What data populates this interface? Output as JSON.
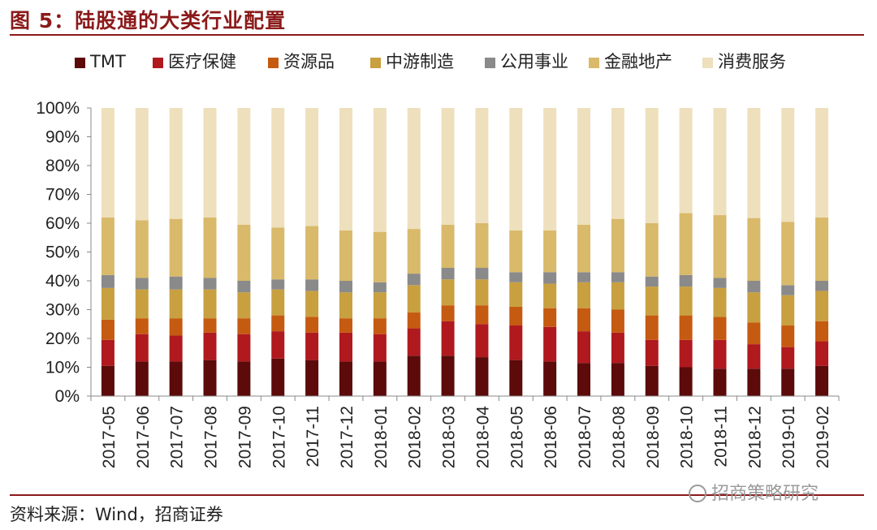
{
  "header": {
    "title": "图 5：陆股通的大类行业配置"
  },
  "footer": {
    "source": "资料来源：Wind，招商证券",
    "watermark": "招商策略研究"
  },
  "chart_data": {
    "type": "bar",
    "stacked": true,
    "title": "",
    "xlabel": "",
    "ylabel": "",
    "ylim": [
      0,
      100
    ],
    "yticks": [
      "0%",
      "10%",
      "20%",
      "30%",
      "40%",
      "50%",
      "60%",
      "70%",
      "80%",
      "90%",
      "100%"
    ],
    "legend_position": "top",
    "categories": [
      "2017-05",
      "2017-06",
      "2017-07",
      "2017-08",
      "2017-09",
      "2017-10",
      "2017-11",
      "2017-12",
      "2018-01",
      "2018-02",
      "2018-03",
      "2018-04",
      "2018-05",
      "2018-06",
      "2018-07",
      "2018-08",
      "2018-09",
      "2018-10",
      "2018-11",
      "2018-12",
      "2019-01",
      "2019-02"
    ],
    "series": [
      {
        "name": "TMT",
        "color": "#5c0a0a",
        "values": [
          10.5,
          12.0,
          12.0,
          12.5,
          12.0,
          13.0,
          12.5,
          12.0,
          12.0,
          14.0,
          14.0,
          13.5,
          12.5,
          12.0,
          11.5,
          11.5,
          10.5,
          10.0,
          9.5,
          9.5,
          9.5,
          10.5
        ]
      },
      {
        "name": "医疗保健",
        "color": "#b0191e",
        "values": [
          9.0,
          9.5,
          9.0,
          9.5,
          9.5,
          9.5,
          9.5,
          10.0,
          9.5,
          9.5,
          12.0,
          11.5,
          12.0,
          12.0,
          11.0,
          10.5,
          9.0,
          9.5,
          10.0,
          8.5,
          7.5,
          8.5
        ]
      },
      {
        "name": "资源品",
        "color": "#c55a11",
        "values": [
          7.0,
          5.5,
          6.0,
          5.0,
          5.5,
          5.5,
          5.5,
          5.0,
          5.5,
          5.5,
          5.5,
          6.5,
          6.5,
          6.5,
          8.0,
          8.0,
          8.5,
          8.5,
          8.0,
          7.5,
          7.5,
          7.0
        ]
      },
      {
        "name": "中游制造",
        "color": "#c8a040",
        "values": [
          11.0,
          10.0,
          10.0,
          10.0,
          9.0,
          9.0,
          9.0,
          9.0,
          9.0,
          9.5,
          9.0,
          9.0,
          8.5,
          8.5,
          9.0,
          9.5,
          10.0,
          10.0,
          10.0,
          10.5,
          10.5,
          10.5
        ]
      },
      {
        "name": "公用事业",
        "color": "#8a8a8a",
        "values": [
          4.5,
          4.0,
          4.5,
          4.0,
          4.0,
          3.5,
          4.0,
          4.0,
          3.5,
          4.0,
          4.0,
          4.0,
          3.5,
          4.0,
          3.5,
          3.5,
          3.5,
          4.0,
          3.5,
          4.0,
          3.5,
          3.5
        ]
      },
      {
        "name": "金融地产",
        "color": "#d9b96a",
        "values": [
          20.0,
          20.0,
          20.0,
          21.0,
          19.5,
          18.0,
          18.5,
          17.5,
          17.5,
          15.5,
          15.0,
          15.5,
          14.5,
          14.5,
          16.5,
          18.5,
          18.5,
          21.5,
          21.8,
          21.8,
          22.0,
          22.0
        ]
      },
      {
        "name": "消费服务",
        "color": "#eee0bc",
        "values": [
          38.0,
          39.0,
          38.5,
          38.0,
          40.5,
          41.5,
          41.0,
          42.5,
          43.0,
          42.0,
          40.5,
          40.0,
          42.5,
          42.5,
          40.5,
          38.5,
          40.0,
          36.5,
          37.2,
          38.2,
          39.5,
          38.0
        ]
      }
    ]
  }
}
